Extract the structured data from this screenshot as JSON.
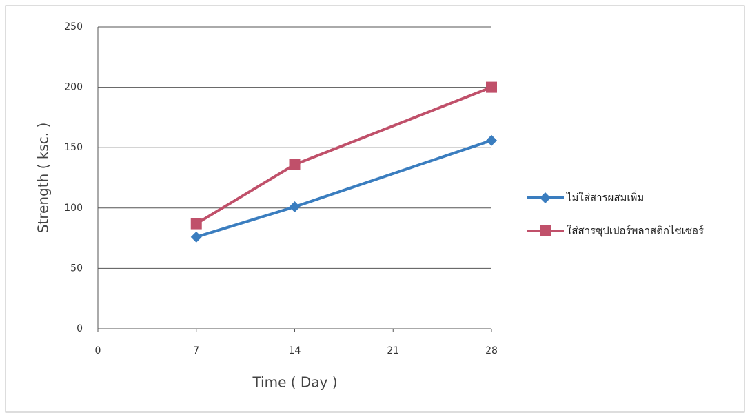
{
  "chart_data": {
    "type": "line",
    "x_label": "Time ( Day )",
    "y_label": "Strength ( ksc. )",
    "x": [
      7,
      14,
      28
    ],
    "series": [
      {
        "name": "ไม่ใส่สารผสมเพิ่ม",
        "color": "#3a7dbf",
        "marker": "diamond",
        "values": [
          76,
          101,
          156
        ]
      },
      {
        "name": "ใส่สารซุปเปอร์พลาสติกไซเซอร์",
        "color": "#c0506a",
        "marker": "square",
        "values": [
          87,
          136,
          200
        ]
      }
    ],
    "xlim": [
      0,
      28
    ],
    "xticks": [
      0,
      7,
      14,
      21,
      28
    ],
    "ylim": [
      0,
      250
    ],
    "yticks": [
      0,
      50,
      100,
      150,
      200,
      250
    ],
    "grid": true,
    "legend": "right"
  }
}
